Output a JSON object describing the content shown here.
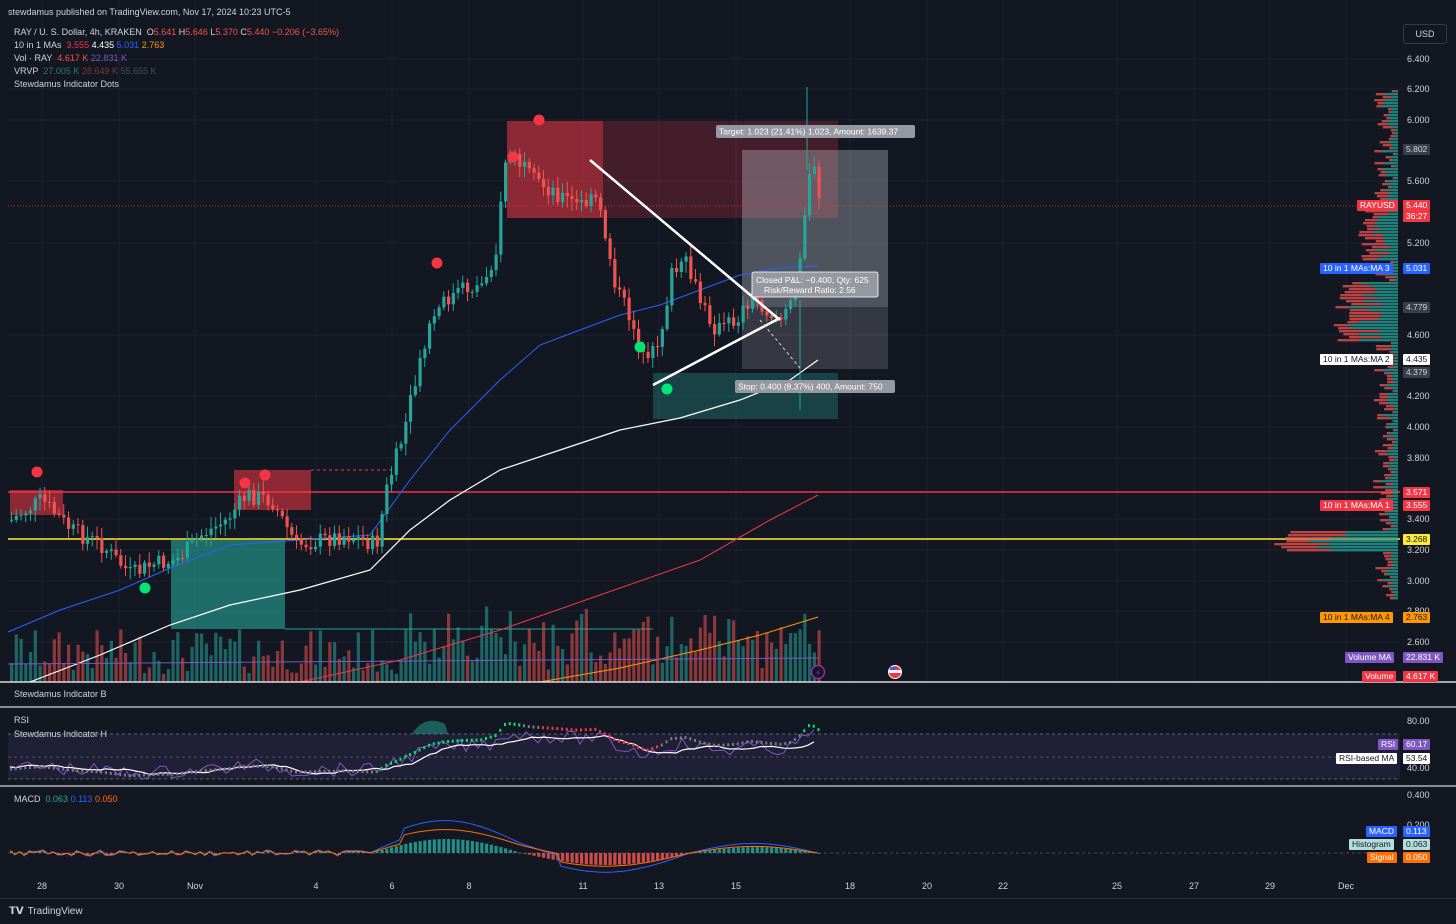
{
  "header": {
    "published": "stewdamus published on TradingView.com, Nov 17, 2024 10:23 UTC-5",
    "currency_button": "USD"
  },
  "legend": {
    "symbol": {
      "name": "RAY / U. S. Dollar, 4h, KRAKEN",
      "o_label": "O",
      "o": "5.641",
      "h_label": "H",
      "h": "5.646",
      "l_label": "L",
      "l": "5.370",
      "c_label": "C",
      "c": "5.440",
      "change": "−0.206 (−3.65%)"
    },
    "mas": {
      "label": "10 in 1 MAs",
      "v1": "3.555",
      "v2": "4.435",
      "v3": "5.031",
      "v4": "2.763"
    },
    "vol": {
      "label": "Vol · RAY",
      "v1": "4.617 K",
      "v2": "22.831 K"
    },
    "vrvp": {
      "label": "VRVP",
      "v1": "27.005 K",
      "v2": "28.649 K",
      "v3": "55.655 K"
    },
    "dots": "Stewdamus Indicator Dots"
  },
  "price_axis": [
    "6.400",
    "6.200",
    "6.000",
    "5.600",
    "5.200",
    "4.600",
    "4.200",
    "4.000",
    "3.800",
    "3.400",
    "3.200",
    "3.000",
    "2.800",
    "2.600"
  ],
  "price_tags": [
    {
      "text": "5.802",
      "bg": "#3a3e49",
      "fg": "#d1d4dc"
    },
    {
      "text": "RAYUSD",
      "bg": "#f23645",
      "fg": "#ffffff"
    },
    {
      "text": "5.440",
      "bg": "#f23645",
      "fg": "#ffffff"
    },
    {
      "text": "36:27",
      "bg": "#f23645",
      "fg": "#ffffff"
    },
    {
      "text": "10 in 1 MAs:MA 3",
      "bg": "#2962ff",
      "fg": "#ffffff"
    },
    {
      "text": "5.031",
      "bg": "#2962ff",
      "fg": "#ffffff"
    },
    {
      "text": "4.779",
      "bg": "#3a3e49",
      "fg": "#d1d4dc"
    },
    {
      "text": "10 in 1 MAs:MA 2",
      "bg": "#ffffff",
      "fg": "#131722"
    },
    {
      "text": "4.435",
      "bg": "#ffffff",
      "fg": "#131722"
    },
    {
      "text": "4.379",
      "bg": "#3a3e49",
      "fg": "#d1d4dc"
    },
    {
      "text": "3.571",
      "bg": "#f23645",
      "fg": "#ffffff"
    },
    {
      "text": "10 in 1 MAs:MA 1",
      "bg": "#f23645",
      "fg": "#ffffff"
    },
    {
      "text": "3.555",
      "bg": "#f23645",
      "fg": "#ffffff"
    },
    {
      "text": "3.268",
      "bg": "#ffeb3b",
      "fg": "#131722"
    },
    {
      "text": "10 in 1 MAs:MA 4",
      "bg": "#ff9800",
      "fg": "#131722"
    },
    {
      "text": "2.763",
      "bg": "#ff9800",
      "fg": "#131722"
    },
    {
      "text": "Volume MA",
      "bg": "#7e57c2",
      "fg": "#ffffff"
    },
    {
      "text": "22.831 K",
      "bg": "#7e57c2",
      "fg": "#ffffff"
    },
    {
      "text": "Volume",
      "bg": "#f23645",
      "fg": "#ffffff"
    },
    {
      "text": "4.617 K",
      "bg": "#f23645",
      "fg": "#ffffff"
    }
  ],
  "position_labels": {
    "target": "Target: 1.023 (21.41%) 1,023, Amount: 1639.37",
    "closed_line1": "Closed P&L: −0.400, Qty: 625",
    "closed_line2": "Risk/Reward Ratio: 2.56",
    "stop": "Stop: 0.400 (8.37%) 400, Amount: 750"
  },
  "panes": {
    "indicator_b": "Stewdamus Indicator B",
    "rsi": "RSI",
    "indicator_h": "Stewdamus Indicator H",
    "rsi_axis": [
      "80.00",
      "40.00"
    ],
    "rsi_tags": [
      {
        "text": "RSI",
        "bg": "#7e57c2",
        "fg": "#ffffff"
      },
      {
        "text": "60.17",
        "bg": "#7e57c2",
        "fg": "#ffffff"
      },
      {
        "text": "RSI-based MA",
        "bg": "#ffffff",
        "fg": "#131722"
      },
      {
        "text": "53.54",
        "bg": "#ffffff",
        "fg": "#131722"
      }
    ],
    "macd": {
      "label": "MACD",
      "v1": "0.063",
      "v2": "0.113",
      "v3": "0.050"
    },
    "macd_axis": [
      "0.400",
      "0.200"
    ],
    "macd_tags": [
      {
        "text": "MACD",
        "bg": "#2962ff",
        "fg": "#ffffff"
      },
      {
        "text": "0.113",
        "bg": "#2962ff",
        "fg": "#ffffff"
      },
      {
        "text": "Histogram",
        "bg": "#b2dfdb",
        "fg": "#131722"
      },
      {
        "text": "0.063",
        "bg": "#b2dfdb",
        "fg": "#131722"
      },
      {
        "text": "Signal",
        "bg": "#ff6d00",
        "fg": "#ffffff"
      },
      {
        "text": "0.050",
        "bg": "#ff6d00",
        "fg": "#ffffff"
      }
    ]
  },
  "time_axis": [
    "28",
    "30",
    "Nov",
    "4",
    "6",
    "8",
    "11",
    "13",
    "15",
    "18",
    "20",
    "22",
    "25",
    "27",
    "29",
    "Dec"
  ],
  "footer": {
    "brand": "TradingView"
  },
  "colors": {
    "bg": "#131722",
    "up": "#26a69a",
    "down": "#ef5350",
    "ma_blue": "#2962ff",
    "ma_white": "#ffffff",
    "ma_red": "#f23645",
    "ma_orange": "#ff9800",
    "hline_red": "#f23645",
    "hline_yellow": "#ffeb3b"
  }
}
